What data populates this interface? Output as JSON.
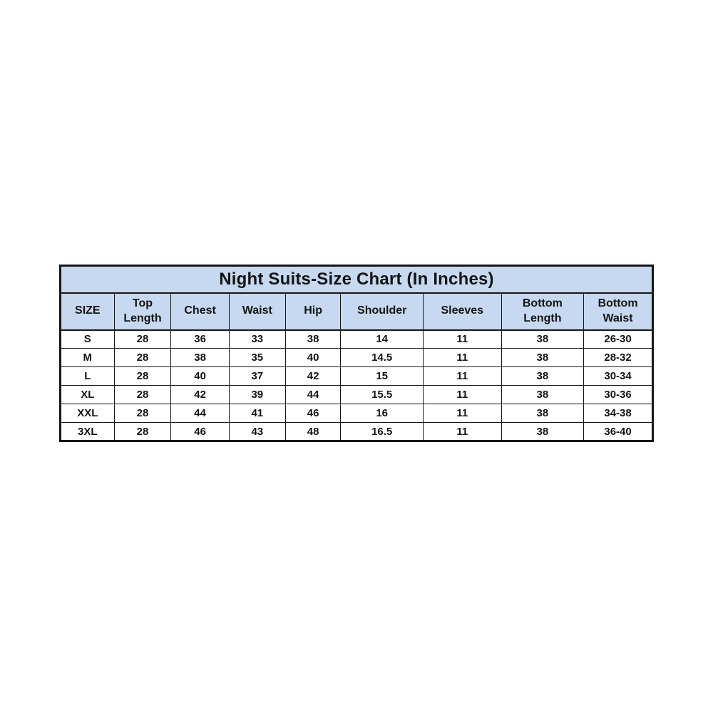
{
  "table": {
    "title": "Night Suits-Size Chart (In Inches)",
    "header_bg": "#c6d9f0",
    "border_color": "#161616",
    "columns": [
      "SIZE",
      "Top Length",
      "Chest",
      "Waist",
      "Hip",
      "Shoulder",
      "Sleeves",
      "Bottom Length",
      "Bottom Waist"
    ],
    "rows": [
      [
        "S",
        "28",
        "36",
        "33",
        "38",
        "14",
        "11",
        "38",
        "26-30"
      ],
      [
        "M",
        "28",
        "38",
        "35",
        "40",
        "14.5",
        "11",
        "38",
        "28-32"
      ],
      [
        "L",
        "28",
        "40",
        "37",
        "42",
        "15",
        "11",
        "38",
        "30-34"
      ],
      [
        "XL",
        "28",
        "42",
        "39",
        "44",
        "15.5",
        "11",
        "38",
        "30-36"
      ],
      [
        "XXL",
        "28",
        "44",
        "41",
        "46",
        "16",
        "11",
        "38",
        "34-38"
      ],
      [
        "3XL",
        "28",
        "46",
        "43",
        "48",
        "16.5",
        "11",
        "38",
        "36-40"
      ]
    ]
  },
  "chart_data": {
    "type": "table",
    "title": "Night Suits-Size Chart (In Inches)",
    "units": "inches",
    "columns": [
      "SIZE",
      "Top Length",
      "Chest",
      "Waist",
      "Hip",
      "Shoulder",
      "Sleeves",
      "Bottom Length",
      "Bottom Waist"
    ],
    "rows": [
      {
        "size": "S",
        "top_length": 28,
        "chest": 36,
        "waist": 33,
        "hip": 38,
        "shoulder": 14,
        "sleeves": 11,
        "bottom_length": 38,
        "bottom_waist": "26-30"
      },
      {
        "size": "M",
        "top_length": 28,
        "chest": 38,
        "waist": 35,
        "hip": 40,
        "shoulder": 14.5,
        "sleeves": 11,
        "bottom_length": 38,
        "bottom_waist": "28-32"
      },
      {
        "size": "L",
        "top_length": 28,
        "chest": 40,
        "waist": 37,
        "hip": 42,
        "shoulder": 15,
        "sleeves": 11,
        "bottom_length": 38,
        "bottom_waist": "30-34"
      },
      {
        "size": "XL",
        "top_length": 28,
        "chest": 42,
        "waist": 39,
        "hip": 44,
        "shoulder": 15.5,
        "sleeves": 11,
        "bottom_length": 38,
        "bottom_waist": "30-36"
      },
      {
        "size": "XXL",
        "top_length": 28,
        "chest": 44,
        "waist": 41,
        "hip": 46,
        "shoulder": 16,
        "sleeves": 11,
        "bottom_length": 38,
        "bottom_waist": "34-38"
      },
      {
        "size": "3XL",
        "top_length": 28,
        "chest": 46,
        "waist": 43,
        "hip": 48,
        "shoulder": 16.5,
        "sleeves": 11,
        "bottom_length": 38,
        "bottom_waist": "36-40"
      }
    ]
  }
}
